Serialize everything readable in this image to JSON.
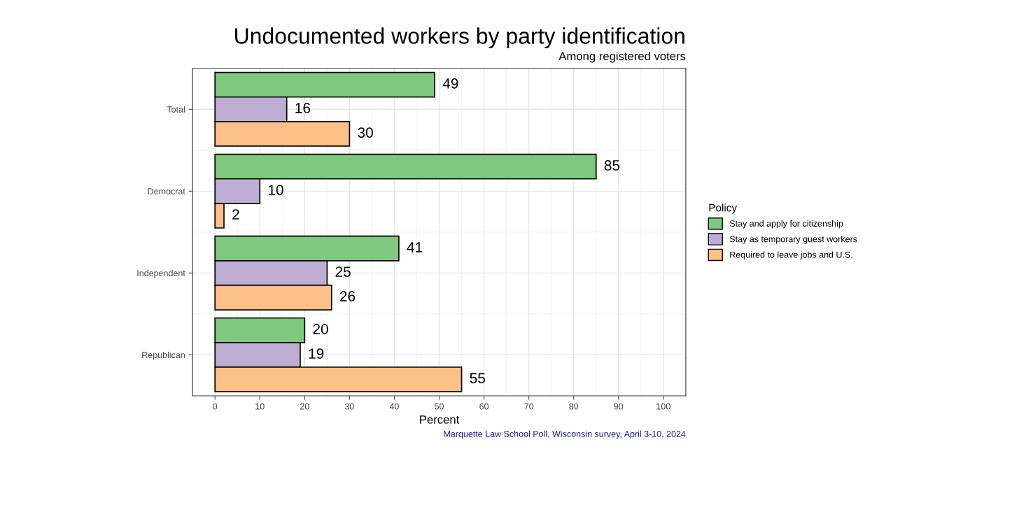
{
  "chart_data": {
    "type": "bar",
    "orientation": "horizontal",
    "title": "Undocumented workers by party identification",
    "subtitle": "Among registered voters",
    "xlabel": "Percent",
    "legend_title": "Policy",
    "categories": [
      "Total",
      "Democrat",
      "Independent",
      "Republican"
    ],
    "series": [
      {
        "name": "Stay and apply for citizenship",
        "color": "#7fc97f",
        "values": [
          49,
          85,
          41,
          20
        ]
      },
      {
        "name": "Stay as temporary guest workers",
        "color": "#beaed4",
        "values": [
          16,
          10,
          25,
          19
        ]
      },
      {
        "name": "Required to leave jobs and U.S.",
        "color": "#fdc086",
        "values": [
          30,
          2,
          26,
          55
        ]
      }
    ],
    "xlim": [
      -5,
      105
    ],
    "xticks": [
      0,
      10,
      20,
      30,
      40,
      50,
      60,
      70,
      80,
      90,
      100
    ],
    "grid": true,
    "legend": "right",
    "data_labels": true,
    "annotations": [
      "Marquette Law School Poll, Wisconsin survey, April 3-10, 2024"
    ]
  }
}
